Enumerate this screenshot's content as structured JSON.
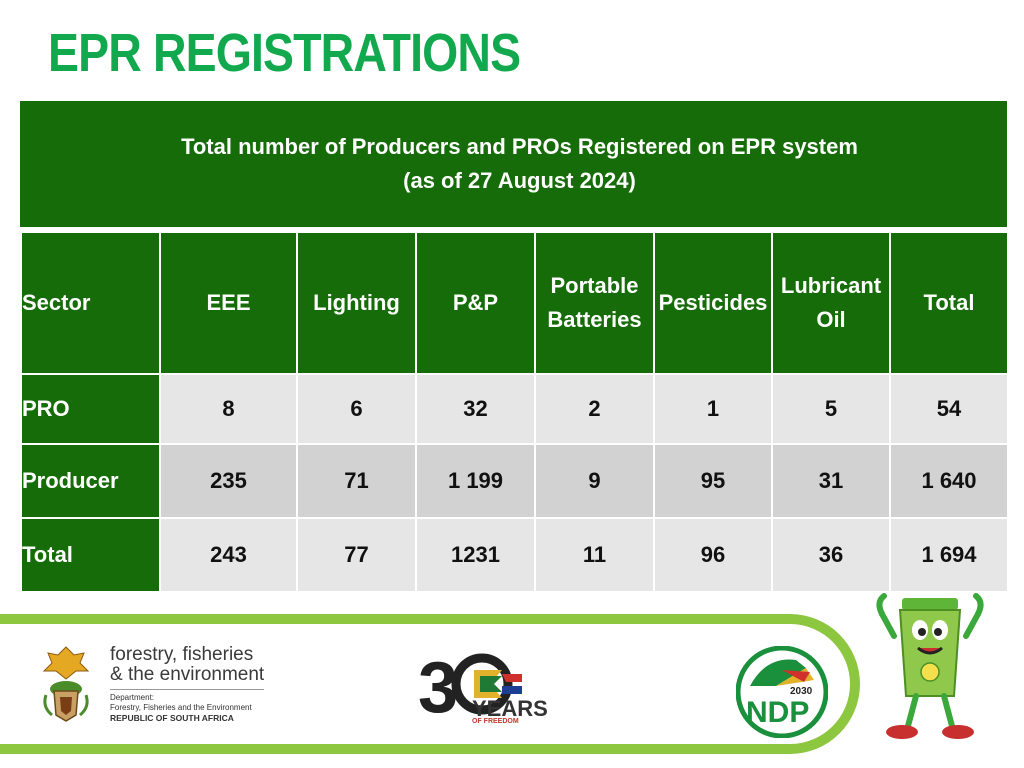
{
  "title": "EPR REGISTRATIONS",
  "table": {
    "banner_line1": "Total number of Producers and PROs Registered on EPR system",
    "banner_line2": "(as of 27 August 2024)",
    "headers": {
      "sector": "Sector",
      "eee": "EEE",
      "lighting": "Lighting",
      "pp": "P&P",
      "portable_line1": "Portable",
      "portable_line2": "Batteries",
      "pesticides": "Pesticides",
      "lubricant_line1": "Lubricant",
      "lubricant_line2": "Oil",
      "total": "Total"
    },
    "rows": [
      {
        "sector": "PRO",
        "eee": "8",
        "lighting": "6",
        "pp": "32",
        "portable": "2",
        "pesticides": "1",
        "lubricant": "5",
        "total": "54"
      },
      {
        "sector": "Producer",
        "eee": "235",
        "lighting": "71",
        "pp": "1 199",
        "portable": "9",
        "pesticides": "95",
        "lubricant": "31",
        "total": "1 640"
      },
      {
        "sector": "Total",
        "eee": "243",
        "lighting": "77",
        "pp": "1231",
        "portable": "11",
        "pesticides": "96",
        "lubricant": "36",
        "total": "1 694"
      }
    ]
  },
  "footer": {
    "dept_line1": "forestry, fisheries",
    "dept_line2": "& the environment",
    "dept_small1": "Department:",
    "dept_small2": "Forestry, Fisheries and the Environment",
    "dept_small3": "REPUBLIC OF SOUTH AFRICA",
    "years_label": "YEARS",
    "years_sub": "OF FREEDOM",
    "ndp_year": "2030",
    "ndp_label": "NDP"
  },
  "colors": {
    "title": "#12a84e",
    "header_green": "#166c08",
    "row_light": "#e6e6e6",
    "row_dark": "#d2d2d2",
    "accent_lime": "#8dc63f"
  }
}
